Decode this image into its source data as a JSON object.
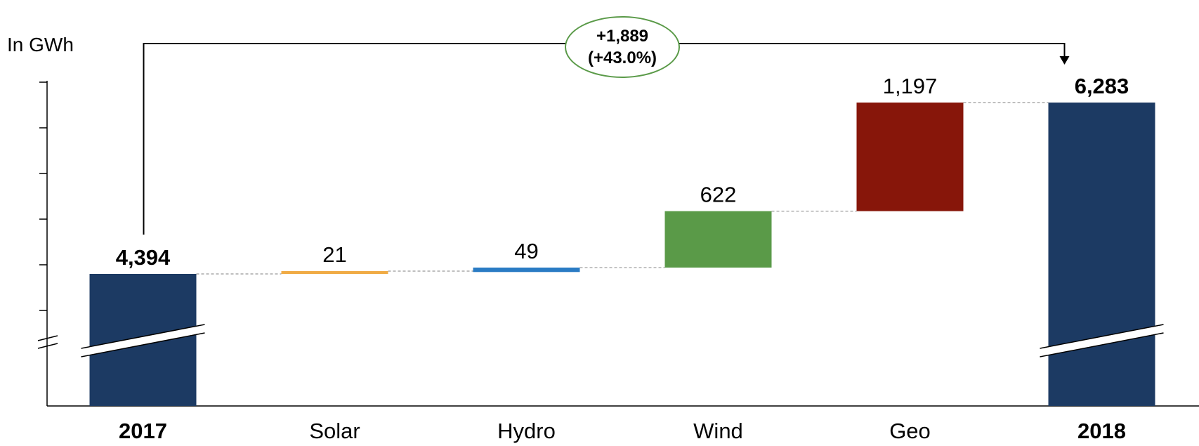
{
  "unit_label": "In GWh",
  "callout": {
    "delta": "+1,889",
    "pct": "(+43.0%)"
  },
  "colors": {
    "total": "#1c3a63",
    "solar": "#f0ab45",
    "hydro": "#2a7bc4",
    "wind": "#5a9a48",
    "geo": "#87160a",
    "callout_border": "#5a9a48"
  },
  "chart_data": {
    "type": "waterfall",
    "title": "",
    "ylabel": "In GWh",
    "axis_break": true,
    "y_tick_labels_shown": false,
    "ylim": [
      4000,
      6500
    ],
    "bars": [
      {
        "category": "2017",
        "kind": "total",
        "value": 4394,
        "label": "4,394",
        "bold": true,
        "color": "#1c3a63"
      },
      {
        "category": "Solar",
        "kind": "delta",
        "value": 21,
        "label": "21",
        "bold": false,
        "color": "#f0ab45"
      },
      {
        "category": "Hydro",
        "kind": "delta",
        "value": 49,
        "label": "49",
        "bold": false,
        "color": "#2a7bc4"
      },
      {
        "category": "Wind",
        "kind": "delta",
        "value": 622,
        "label": "622",
        "bold": false,
        "color": "#5a9a48"
      },
      {
        "category": "Geo",
        "kind": "delta",
        "value": 1197,
        "label": "1,197",
        "bold": false,
        "color": "#87160a"
      },
      {
        "category": "2018",
        "kind": "total",
        "value": 6283,
        "label": "6,283",
        "bold": true,
        "color": "#1c3a63"
      }
    ],
    "change": {
      "value": 1889,
      "label": "+1,889",
      "pct_label": "(+43.0%)"
    }
  }
}
